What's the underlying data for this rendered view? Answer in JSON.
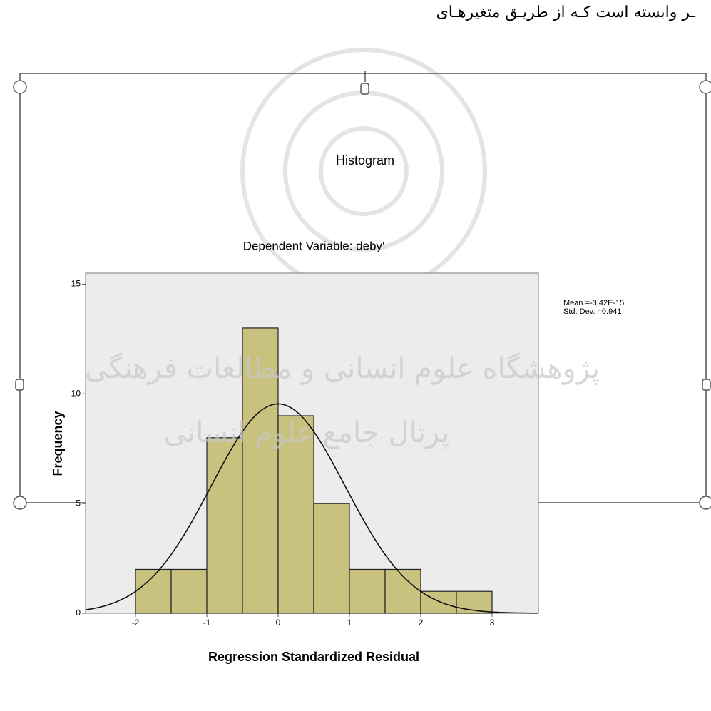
{
  "document_text": "ـر وابسته است كـه از طریـق متغیرهـای",
  "watermark": [
    "پژوهشگاه علوم انسانی و مطالعات فرهنگی",
    "پرتال جامع علوم انسانی"
  ],
  "chart_data": {
    "type": "histogram",
    "title": "Histogram",
    "subtitle": "Dependent Variable: deby'",
    "x_label": "Regression Standardized Residual",
    "y_label": "Frequency",
    "bins": [
      -2,
      -1.5,
      -1,
      -0.5,
      0,
      0.5,
      1,
      1.5,
      2,
      2.5,
      3
    ],
    "values": [
      2,
      2,
      8,
      13,
      9,
      5,
      2,
      2,
      1,
      1
    ],
    "color": "#c9c27f",
    "xlim": [
      -2.7,
      3.65
    ],
    "ylim": [
      0,
      15.5
    ],
    "xticks": [
      -2,
      -1,
      0,
      1,
      2,
      3
    ],
    "yticks": [
      0,
      5,
      10,
      15
    ],
    "normal_curve": {
      "mean": -3.42e-15,
      "sd": 0.941
    },
    "stats": [
      "Mean =-3.42E-15",
      "Std. Dev. =0.941"
    ]
  }
}
